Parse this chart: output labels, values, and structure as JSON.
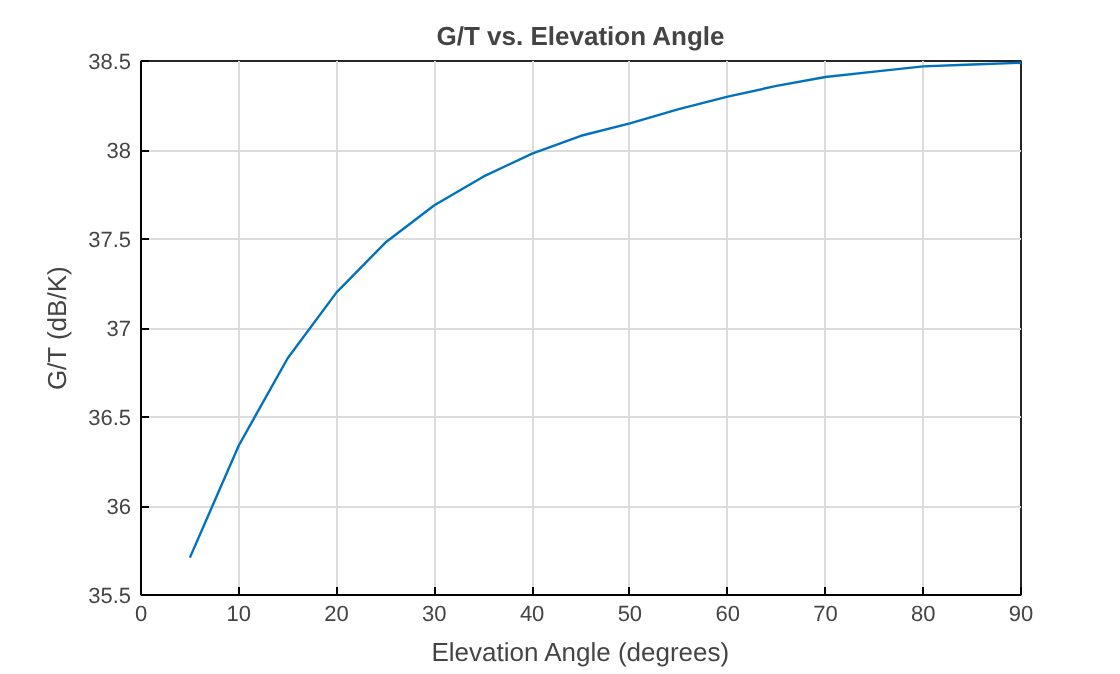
{
  "chart_data": {
    "type": "line",
    "title": "G/T vs. Elevation Angle",
    "xlabel": "Elevation Angle (degrees)",
    "ylabel": "G/T (dB/K)",
    "x": [
      5,
      10,
      15,
      20,
      25,
      30,
      35,
      40,
      45,
      50,
      55,
      60,
      65,
      70,
      75,
      80,
      85,
      90
    ],
    "series": [
      {
        "color": "#0072bd",
        "values": [
          35.71,
          36.34,
          36.83,
          37.2,
          37.48,
          37.69,
          37.85,
          37.98,
          38.08,
          38.15,
          38.23,
          38.3,
          38.36,
          38.41,
          38.44,
          38.47,
          38.48,
          38.49
        ]
      }
    ],
    "xlim": [
      0,
      90
    ],
    "ylim": [
      35.5,
      38.5
    ],
    "xticks": [
      0,
      10,
      20,
      30,
      40,
      50,
      60,
      70,
      80,
      90
    ],
    "yticks": [
      35.5,
      36,
      36.5,
      37,
      37.5,
      38,
      38.5
    ],
    "grid": true,
    "marker": "none",
    "line_style": "solid"
  }
}
